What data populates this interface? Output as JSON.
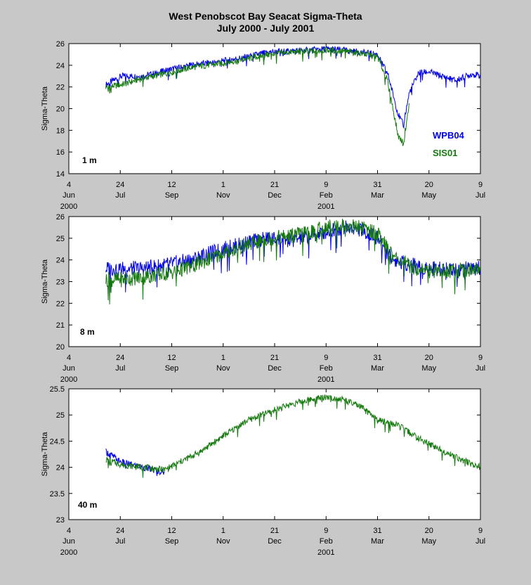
{
  "title_line1": "West Penobscot Bay   Seacat Sigma-Theta",
  "title_line2": "July 2000 - July 2001",
  "colors": {
    "WPB04": "#0000e6",
    "SIS01": "#157a0e",
    "background": "#c8c8c8",
    "plot": "#ffffff"
  },
  "x_ticks": [
    {
      "day": "4",
      "month": "Jun",
      "year": "2000"
    },
    {
      "day": "24",
      "month": "Jul",
      "year": ""
    },
    {
      "day": "12",
      "month": "Sep",
      "year": ""
    },
    {
      "day": "1",
      "month": "Nov",
      "year": ""
    },
    {
      "day": "21",
      "month": "Dec",
      "year": ""
    },
    {
      "day": "9",
      "month": "Feb",
      "year": "2001"
    },
    {
      "day": "31",
      "month": "Mar",
      "year": ""
    },
    {
      "day": "20",
      "month": "May",
      "year": ""
    },
    {
      "day": "9",
      "month": "Jul",
      "year": ""
    }
  ],
  "x_tick_dates": [
    "2000-06-04",
    "2000-07-24",
    "2000-09-12",
    "2000-11-01",
    "2000-12-21",
    "2001-02-09",
    "2001-03-31",
    "2001-05-20",
    "2001-07-09"
  ],
  "chart_data": [
    {
      "type": "line",
      "depth_label": "1 m",
      "ylabel": "Sigma-Theta",
      "ylim": [
        14,
        26
      ],
      "yticks": [
        "14",
        "16",
        "18",
        "20",
        "22",
        "24",
        "26"
      ],
      "legend": [
        "WPB04",
        "SIS01"
      ],
      "series": [
        {
          "name": "WPB04",
          "x": [
            "2000-07-10",
            "2000-07-25",
            "2000-08-15",
            "2000-09-10",
            "2000-10-01",
            "2000-11-01",
            "2000-11-25",
            "2000-12-15",
            "2001-01-05",
            "2001-01-25",
            "2001-02-09",
            "2001-02-25",
            "2001-03-15",
            "2001-03-31",
            "2001-04-10",
            "2001-04-20",
            "2001-04-25",
            "2001-05-01",
            "2001-05-10",
            "2001-05-20",
            "2001-06-01",
            "2001-06-15",
            "2001-07-01",
            "2001-07-09"
          ],
          "values": [
            22.2,
            23.0,
            23.0,
            23.6,
            24.0,
            24.4,
            24.8,
            25.2,
            25.3,
            25.4,
            25.5,
            25.4,
            25.2,
            25.0,
            23.2,
            19.5,
            18.5,
            21.5,
            23.3,
            23.4,
            23.0,
            22.6,
            23.2,
            23.0
          ]
        },
        {
          "name": "SIS01",
          "x": [
            "2000-07-10",
            "2000-07-25",
            "2000-08-15",
            "2000-09-10",
            "2000-10-01",
            "2000-11-01",
            "2000-11-25",
            "2000-12-15",
            "2001-01-05",
            "2001-01-25",
            "2001-02-09",
            "2001-02-25",
            "2001-03-15",
            "2001-03-31",
            "2001-04-10",
            "2001-04-20",
            "2001-04-25",
            "2001-05-01"
          ],
          "values": [
            22.0,
            22.2,
            22.8,
            23.3,
            23.8,
            24.2,
            24.6,
            25.0,
            25.2,
            25.3,
            25.4,
            25.3,
            25.1,
            24.8,
            22.5,
            17.5,
            16.8,
            20.5
          ]
        }
      ]
    },
    {
      "type": "line",
      "depth_label": "8 m",
      "ylabel": "Sigma-Theta",
      "ylim": [
        20,
        26
      ],
      "yticks": [
        "20",
        "21",
        "22",
        "23",
        "24",
        "25",
        "26"
      ],
      "series": [
        {
          "name": "WPB04",
          "x": [
            "2000-07-10",
            "2000-07-25",
            "2000-08-15",
            "2000-09-10",
            "2000-10-01",
            "2000-11-01",
            "2000-11-25",
            "2000-12-15",
            "2001-01-05",
            "2001-01-25",
            "2001-02-09",
            "2001-02-25",
            "2001-03-15",
            "2001-03-31",
            "2001-04-15",
            "2001-05-01",
            "2001-05-20",
            "2001-06-10",
            "2001-07-09"
          ],
          "values": [
            23.6,
            23.6,
            23.6,
            23.8,
            24.0,
            24.5,
            24.8,
            25.0,
            24.9,
            25.1,
            25.3,
            25.5,
            25.4,
            25.0,
            24.0,
            23.8,
            23.6,
            23.6,
            23.6
          ]
        },
        {
          "name": "SIS01",
          "x": [
            "2000-07-10",
            "2000-07-25",
            "2000-08-15",
            "2000-09-10",
            "2000-10-01",
            "2000-11-01",
            "2000-11-25",
            "2000-12-15",
            "2001-01-05",
            "2001-01-25",
            "2001-02-09",
            "2001-02-25",
            "2001-03-15",
            "2001-03-31",
            "2001-04-15",
            "2001-05-01",
            "2001-05-20",
            "2001-06-10",
            "2001-07-09"
          ],
          "values": [
            23.1,
            23.1,
            23.2,
            23.4,
            23.7,
            24.3,
            24.7,
            25.0,
            25.1,
            25.3,
            25.5,
            25.6,
            25.5,
            25.2,
            24.2,
            23.7,
            23.5,
            23.5,
            23.6
          ]
        }
      ]
    },
    {
      "type": "line",
      "depth_label": "40 m",
      "ylabel": "Sigma-Theta",
      "ylim": [
        23,
        25.5
      ],
      "yticks": [
        "23",
        "23.5",
        "24",
        "24.5",
        "25",
        "25.5"
      ],
      "series": [
        {
          "name": "WPB04",
          "x": [
            "2000-07-10",
            "2000-07-25",
            "2000-08-15",
            "2000-09-05"
          ],
          "values": [
            24.3,
            24.1,
            24.0,
            23.9
          ]
        },
        {
          "name": "SIS01",
          "x": [
            "2000-07-10",
            "2000-07-25",
            "2000-08-15",
            "2000-09-05",
            "2000-09-20",
            "2000-10-10",
            "2000-11-01",
            "2000-11-25",
            "2000-12-15",
            "2001-01-05",
            "2001-01-25",
            "2001-02-09",
            "2001-02-25",
            "2001-03-15",
            "2001-03-31",
            "2001-04-20",
            "2001-05-10",
            "2001-05-30",
            "2001-06-20",
            "2001-07-09"
          ],
          "values": [
            24.15,
            24.05,
            24.0,
            23.95,
            24.1,
            24.3,
            24.6,
            24.9,
            25.05,
            25.2,
            25.3,
            25.35,
            25.3,
            25.15,
            24.9,
            24.8,
            24.55,
            24.35,
            24.15,
            24.0
          ]
        }
      ]
    }
  ]
}
